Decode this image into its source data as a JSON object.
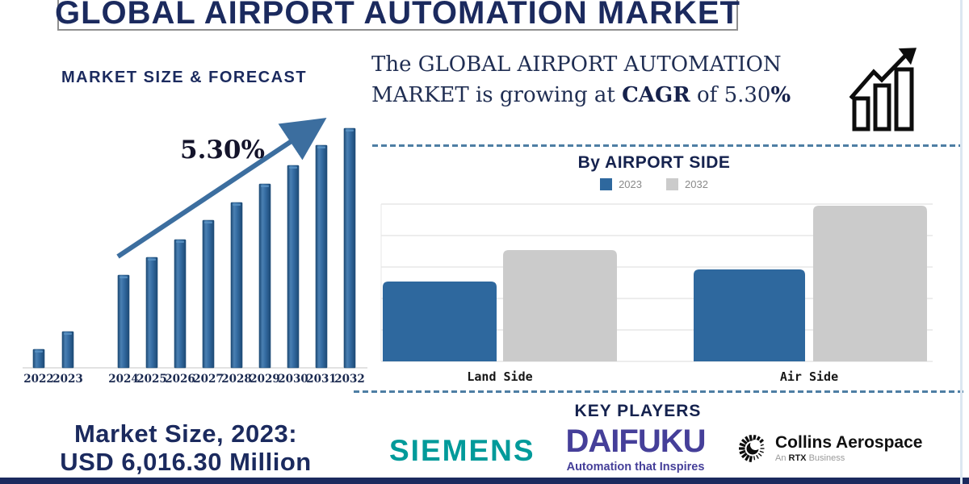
{
  "title": "GLOBAL AIRPORT AUTOMATION MARKET",
  "left_panel": {
    "heading": "MARKET SIZE & FORECAST",
    "market_size_line1": "Market Size, 2023:",
    "market_size_line2": "USD 6,016.30 Million"
  },
  "headline": {
    "part1": "The GLOBAL  AIRPORT AUTOMATION MARKET is growing at ",
    "bold1": "CAGR",
    "part2": " of 5.30",
    "bold2": "%"
  },
  "sections": {
    "airport_side_heading": "By AIRPORT SIDE",
    "key_players_heading": "KEY PLAYERS"
  },
  "key_players": {
    "siemens": "SIEMENS",
    "daifuku": "DAIFUKU",
    "daifuku_tagline": "Automation that Inspires",
    "collins": "Collins Aerospace",
    "collins_sub_prefix": "An ",
    "collins_sub_bold": "RTX",
    "collins_sub_suffix": " Business"
  },
  "chart_data": [
    {
      "type": "bar",
      "title": "MARKET SIZE & FORECAST",
      "categories": [
        "2022",
        "2023",
        "2024",
        "2025",
        "2026",
        "2027",
        "2028",
        "2029",
        "2030",
        "2031",
        "2032"
      ],
      "values": [
        23,
        45,
        115,
        137,
        159,
        183,
        205,
        228,
        251,
        276,
        297
      ],
      "annotation": "5.30%",
      "xlabel": "",
      "ylabel": "",
      "ylim": [
        0,
        300
      ],
      "value_scale": "relative-height (no y-axis shown)"
    },
    {
      "type": "bar",
      "title": "By AIRPORT SIDE",
      "categories": [
        "Land Side",
        "Air Side"
      ],
      "series": [
        {
          "name": "2023",
          "values": [
            99,
            114
          ]
        },
        {
          "name": "2032",
          "values": [
            138,
            193
          ]
        }
      ],
      "legend_position": "top",
      "grid": true,
      "ylim": [
        0,
        195
      ],
      "value_scale": "relative-height (no y-axis shown)"
    }
  ],
  "colors": {
    "navy": "#1b2a5e",
    "bar_blue": "#2e689e",
    "bar_blue_edge": "#1d4a75",
    "bar_blue_light": "#5b93c4",
    "bar_gray": "#cbcbcb",
    "arrow_blue": "#3c6e9f",
    "dashed_blue": "#4e7ea4",
    "grid_line": "#e7e7e7",
    "baseline": "#d9d9d9",
    "siemens_teal": "#009a9a",
    "daifuku_indigo": "#453f99",
    "legend_text": "#8a8a8a"
  }
}
